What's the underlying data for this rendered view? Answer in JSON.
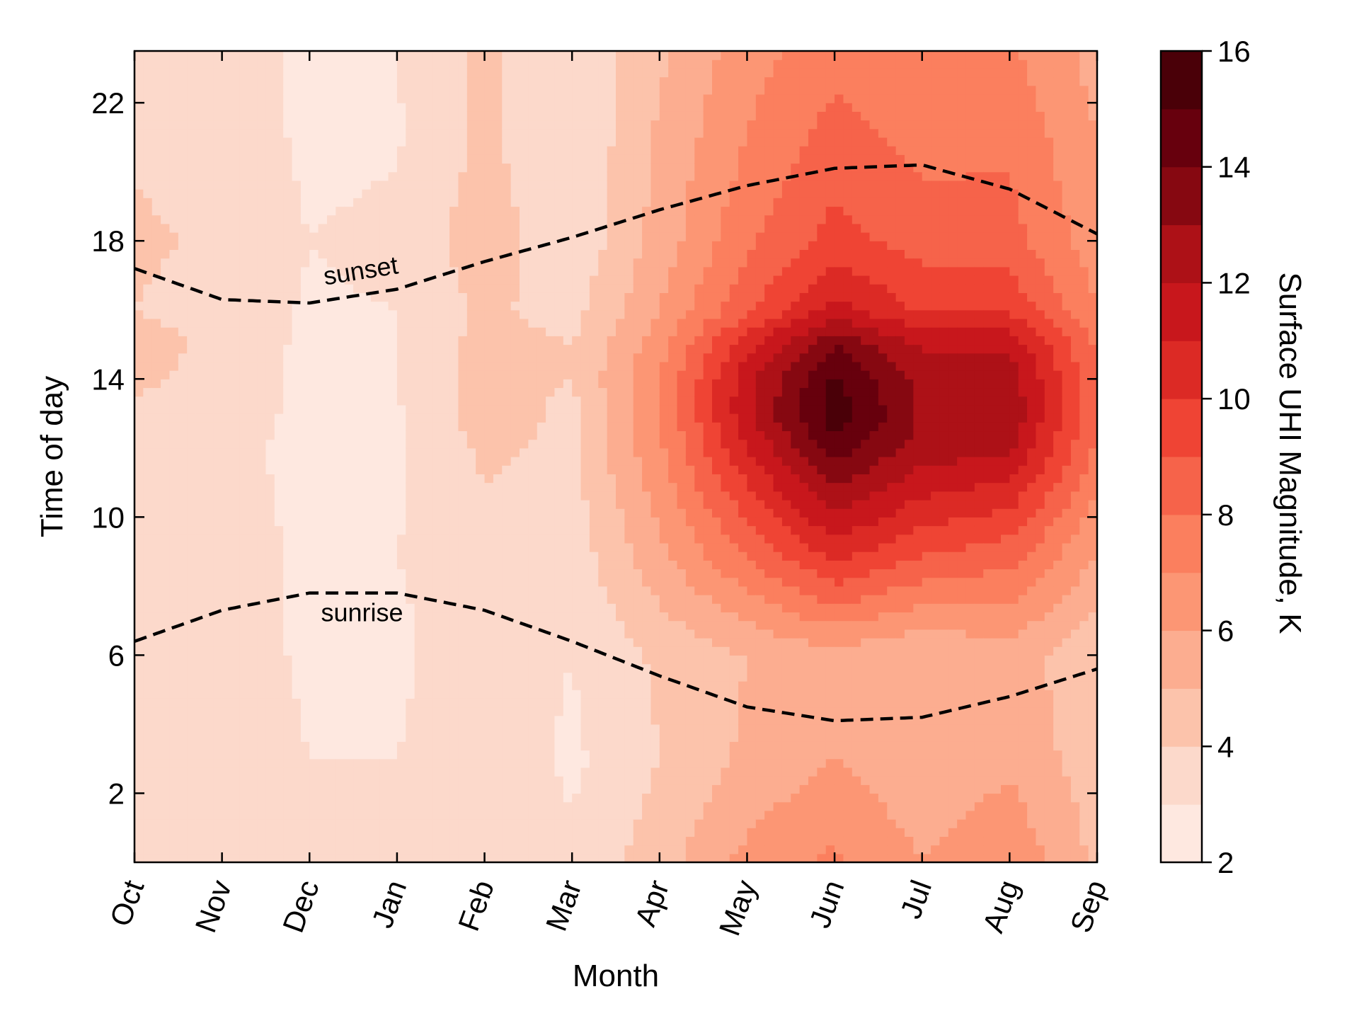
{
  "chart_data": {
    "type": "heatmap",
    "subtype": "filled-contour",
    "title": "",
    "xlabel": "Month",
    "ylabel": "Time of day",
    "colorbar_label": "Surface UHI Magnitude, K",
    "x": [
      "Oct",
      "Nov",
      "Dec",
      "Jan",
      "Feb",
      "Mar",
      "Apr",
      "May",
      "Jun",
      "Jul",
      "Aug",
      "Sep"
    ],
    "y": [
      0,
      3,
      6,
      9,
      12,
      13,
      14,
      15,
      16,
      18,
      21,
      23.5
    ],
    "ylim": [
      0,
      23.5
    ],
    "yticks": [
      "2",
      "6",
      "10",
      "14",
      "18",
      "22"
    ],
    "colorbar_ticks": [
      "2",
      "4",
      "6",
      "8",
      "10",
      "12",
      "14",
      "16"
    ],
    "clim": [
      2,
      16
    ],
    "levels": [
      2,
      3,
      4,
      5,
      6,
      7,
      8,
      9,
      10,
      11,
      12,
      13,
      14,
      15,
      16
    ],
    "colors": [
      "#fee8e0",
      "#fcd9cb",
      "#fcc3ab",
      "#fcad90",
      "#fc9674",
      "#fb7f5e",
      "#f6634a",
      "#ef4434",
      "#dc2a25",
      "#c8171c",
      "#ad1117",
      "#860811",
      "#67000d",
      "#4a0008"
    ],
    "z": [
      [
        3.8,
        3.8,
        3.2,
        3.0,
        3.6,
        3.2,
        4.6,
        6.3,
        7.2,
        6.0,
        6.8,
        4.8
      ],
      [
        3.7,
        3.7,
        3.0,
        3.0,
        3.7,
        2.8,
        4.0,
        5.2,
        6.0,
        5.2,
        5.8,
        4.4
      ],
      [
        3.4,
        3.6,
        2.8,
        2.8,
        3.6,
        3.0,
        4.2,
        5.0,
        5.6,
        5.0,
        5.5,
        4.2
      ],
      [
        3.0,
        3.5,
        2.8,
        3.0,
        3.6,
        3.4,
        5.8,
        8.2,
        10.5,
        9.2,
        8.5,
        6.0
      ],
      [
        3.6,
        3.4,
        2.6,
        2.8,
        4.2,
        3.8,
        6.8,
        11.0,
        14.5,
        12.6,
        12.2,
        7.8
      ],
      [
        3.8,
        3.6,
        2.7,
        2.9,
        4.6,
        3.7,
        7.0,
        11.8,
        15.6,
        12.9,
        12.8,
        8.0
      ],
      [
        4.2,
        3.6,
        2.8,
        3.0,
        4.4,
        4.0,
        7.0,
        11.6,
        15.2,
        12.6,
        12.6,
        8.2
      ],
      [
        4.6,
        3.6,
        2.8,
        3.0,
        4.4,
        4.0,
        6.6,
        10.6,
        14.0,
        11.8,
        11.8,
        7.8
      ],
      [
        4.0,
        3.5,
        2.9,
        3.0,
        4.2,
        3.6,
        6.0,
        8.8,
        11.4,
        9.8,
        9.8,
        7.0
      ],
      [
        4.2,
        3.8,
        3.0,
        3.2,
        4.6,
        3.2,
        5.4,
        7.8,
        9.4,
        8.6,
        8.4,
        6.4
      ],
      [
        3.8,
        3.6,
        2.8,
        2.9,
        4.2,
        3.0,
        5.2,
        7.0,
        8.4,
        7.6,
        7.8,
        6.0
      ],
      [
        3.6,
        3.6,
        2.8,
        3.0,
        4.2,
        3.0,
        4.8,
        6.6,
        7.6,
        7.0,
        7.2,
        5.6
      ]
    ],
    "annotations": [
      {
        "text": "sunset",
        "style": "dashed",
        "values_hours": [
          17.2,
          16.3,
          16.2,
          16.6,
          17.4,
          18.1,
          18.9,
          19.6,
          20.1,
          20.2,
          19.5,
          18.2
        ]
      },
      {
        "text": "sunrise",
        "style": "dashed",
        "values_hours": [
          6.4,
          7.3,
          7.8,
          7.8,
          7.3,
          6.4,
          5.4,
          4.5,
          4.1,
          4.2,
          4.8,
          5.6
        ]
      }
    ],
    "grid": false,
    "legend": "colorbar-right"
  }
}
